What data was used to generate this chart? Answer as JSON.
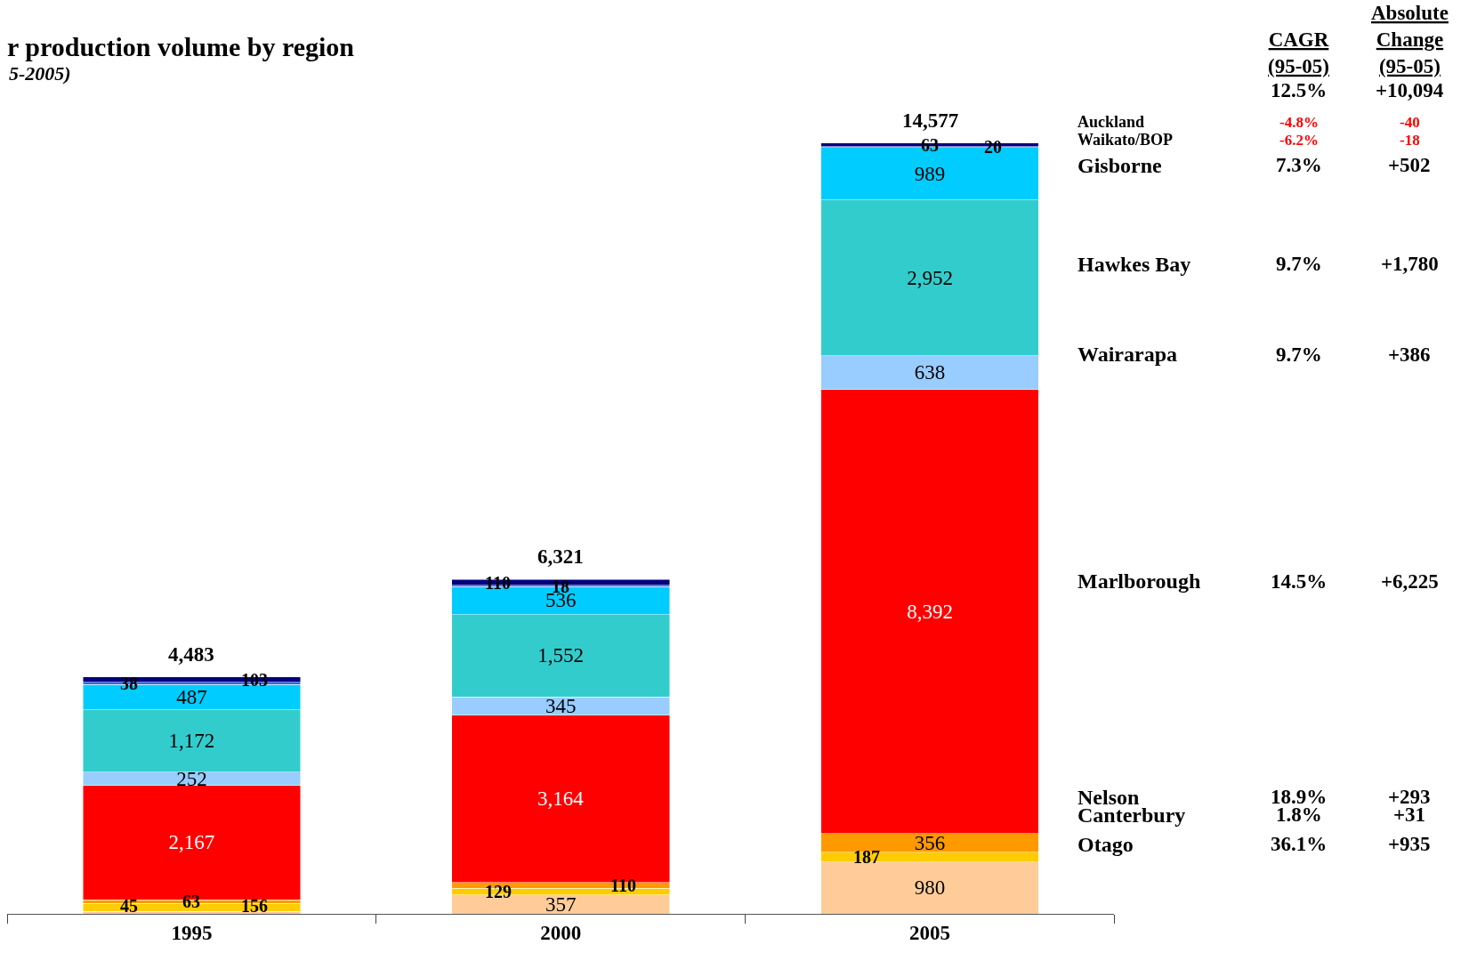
{
  "chart_data": {
    "type": "bar",
    "title": "r production volume by region",
    "subtitle": "5-2005)",
    "categories": [
      "1995",
      "2000",
      "2005"
    ],
    "stacked": true,
    "legend": false,
    "ylim": [
      0,
      17285
    ],
    "totals": [
      "4,483",
      "6,321",
      "14,577"
    ],
    "series": [
      {
        "name": "Otago",
        "color": "#ffcc99",
        "values": [
          45,
          357,
          980
        ],
        "value_labels": [
          "45",
          "357",
          "980"
        ]
      },
      {
        "name": "Canterbury",
        "color": "#ffcc00",
        "values": [
          156,
          129,
          187
        ],
        "value_labels": [
          "156",
          "129",
          "187"
        ]
      },
      {
        "name": "Nelson",
        "color": "#ff9900",
        "values": [
          63,
          110,
          356
        ],
        "value_labels": [
          "63",
          "110",
          "356"
        ]
      },
      {
        "name": "Marlborough",
        "color": "#ff0000",
        "values": [
          2167,
          3164,
          8392
        ],
        "value_labels": [
          "2,167",
          "3,164",
          "8,392"
        ]
      },
      {
        "name": "Wairarapa",
        "color": "#99ccff",
        "values": [
          252,
          345,
          638
        ],
        "value_labels": [
          "252",
          "345",
          "638"
        ]
      },
      {
        "name": "Hawkes Bay",
        "color": "#33cccc",
        "values": [
          1172,
          1552,
          2952
        ],
        "value_labels": [
          "1,172",
          "1,552",
          "2,952"
        ]
      },
      {
        "name": "Gisborne",
        "color": "#00ccff",
        "values": [
          487,
          536,
          989
        ],
        "value_labels": [
          "487",
          "536",
          "989"
        ]
      },
      {
        "name": "Waikato/BOP",
        "color": "#3366ff",
        "values": [
          38,
          18,
          20
        ],
        "value_labels": [
          "38",
          "18",
          "20"
        ]
      },
      {
        "name": "Auckland",
        "color": "#000080",
        "values": [
          103,
          110,
          63
        ],
        "value_labels": [
          "103",
          "110",
          "63"
        ]
      }
    ],
    "annotations": [
      "CAGR\n(95-05)",
      "Absolute\nChange\n(95-05)",
      "12.5%",
      "+10,094",
      "36.1%",
      "+935",
      "1.8%",
      "+31",
      "18.9%",
      "+293",
      "14.5%",
      "+6,225",
      "9.7%",
      "+386",
      "9.7%",
      "+1,780",
      "7.3%",
      "+502",
      "-6.2%",
      "-18",
      "-4.8%",
      "-40"
    ]
  }
}
